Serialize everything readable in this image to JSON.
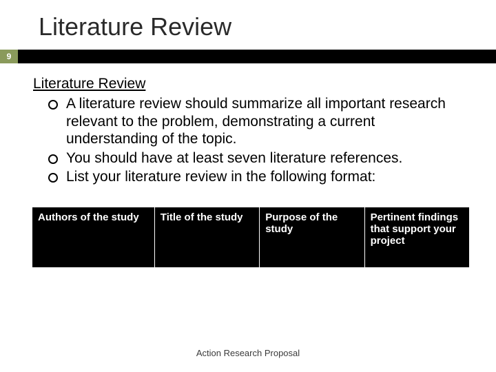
{
  "slide": {
    "title": "Literature Review",
    "page_number": "9",
    "footer": "Action Research Proposal"
  },
  "content": {
    "heading": "Literature Review",
    "bullets": [
      "A literature review should summarize all important research relevant to the problem, demonstrating a current understanding of the topic.",
      "You should have at least seven literature references.",
      "List your literature review in the following format:"
    ]
  },
  "table": {
    "headers": [
      "Authors of the study",
      "Title of the study",
      "Purpose of the study",
      "Pertinent findings that support your project"
    ]
  },
  "colors": {
    "page_badge_bg": "#8a9a5b",
    "bar_bg": "#000000",
    "table_header_bg": "#000000",
    "table_header_text": "#ffffff",
    "title_color": "#2a2a2a",
    "body_text": "#000000",
    "background": "#ffffff"
  },
  "typography": {
    "title_fontsize": 36,
    "heading_fontsize": 21,
    "body_fontsize": 21,
    "table_header_fontsize": 15,
    "footer_fontsize": 13,
    "font_family": "Arial"
  }
}
